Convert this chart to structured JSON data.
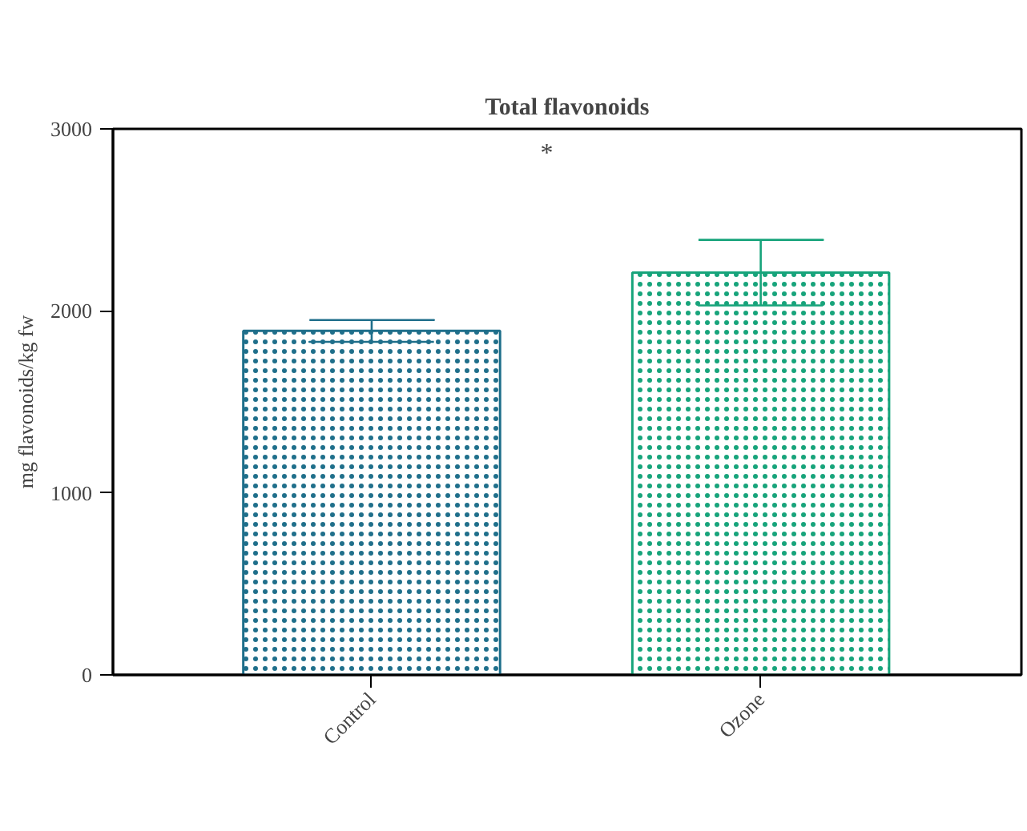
{
  "chart_data": {
    "type": "bar",
    "title": "Total flavonoids",
    "ylabel": "mg flavonoids/kg fw",
    "categories": [
      "Control",
      "Ozone"
    ],
    "values": [
      1890,
      2210
    ],
    "errors": [
      60,
      180
    ],
    "colors": [
      "#1f6f8b",
      "#17a47b"
    ],
    "ylim": [
      0,
      3000
    ],
    "yticks": [
      0,
      1000,
      2000,
      3000
    ],
    "annotations": [
      "*"
    ],
    "grid": false
  }
}
